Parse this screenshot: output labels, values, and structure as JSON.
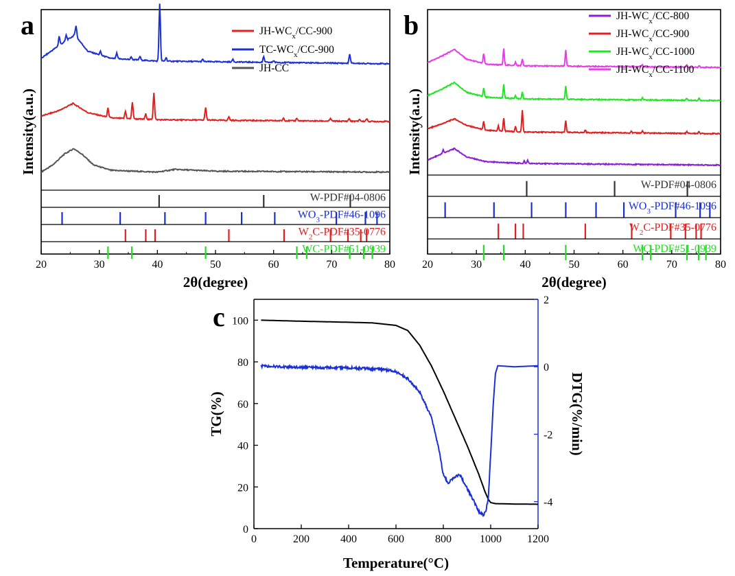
{
  "figure": {
    "panel_letters": [
      "a",
      "b",
      "c"
    ]
  },
  "chart_data": [
    {
      "panel": "a",
      "type": "line",
      "xlabel": "2θ(degree)",
      "ylabel": "Intensity(a.u.)",
      "xlim": [
        20,
        80
      ],
      "xticks": [
        20,
        30,
        40,
        50,
        60,
        70,
        80
      ],
      "series": [
        {
          "name": "JH-WC",
          "name_sub": "x",
          "name_tail": "/CC-900",
          "color": "#e02020",
          "offset": 0.38,
          "base": [
            [
              20,
              0.03
            ],
            [
              23,
              0.06
            ],
            [
              25.5,
              0.1
            ],
            [
              28,
              0.05
            ],
            [
              32,
              0.02
            ],
            [
              40,
              0.01
            ],
            [
              80,
              0.0
            ]
          ],
          "peaks": [
            [
              31.5,
              0.05
            ],
            [
              34.5,
              0.04
            ],
            [
              35.7,
              0.09
            ],
            [
              38.0,
              0.03
            ],
            [
              39.4,
              0.15
            ],
            [
              48.3,
              0.07
            ],
            [
              52.3,
              0.02
            ],
            [
              61.7,
              0.015
            ],
            [
              64.0,
              0.015
            ],
            [
              69.8,
              0.015
            ],
            [
              73.0,
              0.015
            ],
            [
              74.8,
              0.012
            ],
            [
              76.0,
              0.015
            ]
          ]
        },
        {
          "name": "TC-WC",
          "name_sub": "x",
          "name_tail": "/CC-900",
          "color": "#1b2fd6",
          "offset": 0.7,
          "base": [
            [
              20,
              0.03
            ],
            [
              23,
              0.1
            ],
            [
              25.8,
              0.16
            ],
            [
              28,
              0.07
            ],
            [
              32,
              0.03
            ],
            [
              40,
              0.015
            ],
            [
              80,
              0.0
            ]
          ],
          "peaks": [
            [
              23.1,
              0.05
            ],
            [
              24.3,
              0.03
            ],
            [
              26.0,
              0.06
            ],
            [
              30.2,
              0.02
            ],
            [
              33.0,
              0.03
            ],
            [
              35.5,
              0.015
            ],
            [
              37.0,
              0.02
            ],
            [
              40.4,
              0.32
            ],
            [
              41.5,
              0.02
            ],
            [
              47.8,
              0.012
            ],
            [
              53.0,
              0.015
            ],
            [
              58.3,
              0.03
            ],
            [
              60.0,
              0.01
            ],
            [
              73.1,
              0.05
            ]
          ]
        },
        {
          "name": "JH-CC",
          "name_sub": "",
          "name_tail": "",
          "color": "#555555",
          "offset": 0.1,
          "base": [
            [
              20,
              0.0
            ],
            [
              22,
              0.04
            ],
            [
              24,
              0.1
            ],
            [
              25.6,
              0.13
            ],
            [
              27,
              0.1
            ],
            [
              29,
              0.04
            ],
            [
              32,
              0.01
            ],
            [
              40,
              0.0
            ],
            [
              43,
              0.015
            ],
            [
              50,
              0.005
            ],
            [
              80,
              0.0
            ]
          ],
          "peaks": []
        }
      ],
      "reference_patterns": [
        {
          "label": "W-PDF#04-0806",
          "label_sub": "",
          "color": "#333333",
          "lines": [
            40.3,
            58.3,
            73.2
          ]
        },
        {
          "label": "WO",
          "label_sub": "3",
          "label_tail": "-PDF#46-1096",
          "color": "#1b2fd6",
          "lines": [
            23.6,
            33.6,
            41.3,
            48.3,
            54.5,
            60.2,
            70.8,
            75.8,
            77.8
          ]
        },
        {
          "label": "W",
          "label_sub": "2",
          "label_tail": "C-PDF#35-0776",
          "color": "#e02020",
          "lines": [
            34.5,
            38.0,
            39.6,
            52.3,
            61.8,
            69.8,
            72.8,
            75.0,
            76.0
          ]
        },
        {
          "label": "WC-PDF#51-0939",
          "label_sub": "",
          "color": "#22dd22",
          "lines": [
            31.5,
            35.6,
            48.3,
            64.0,
            65.7,
            73.1,
            75.5,
            77.0
          ]
        }
      ]
    },
    {
      "panel": "b",
      "type": "line",
      "xlabel": "2θ(degree)",
      "ylabel": "Intensity(a.u.)",
      "xlim": [
        20,
        80
      ],
      "xticks": [
        20,
        30,
        40,
        50,
        60,
        70,
        80
      ],
      "series": [
        {
          "name": "JH-WC",
          "name_sub": "x",
          "name_tail": "/CC-800",
          "color": "#8a1ed8",
          "offset": 0.06,
          "base": [
            [
              20,
              0.03
            ],
            [
              23,
              0.07
            ],
            [
              25.5,
              0.1
            ],
            [
              28,
              0.05
            ],
            [
              32,
              0.02
            ],
            [
              40,
              0.01
            ],
            [
              80,
              0.0
            ]
          ],
          "peaks": [
            [
              23.2,
              0.02
            ],
            [
              39.8,
              0.015
            ],
            [
              40.5,
              0.02
            ]
          ]
        },
        {
          "name": "JH-WC",
          "name_sub": "x",
          "name_tail": "/CC-900",
          "color": "#e02020",
          "offset": 0.25,
          "base": [
            [
              20,
              0.03
            ],
            [
              23,
              0.06
            ],
            [
              25.5,
              0.09
            ],
            [
              28,
              0.05
            ],
            [
              32,
              0.02
            ],
            [
              40,
              0.01
            ],
            [
              80,
              0.0
            ]
          ],
          "peaks": [
            [
              31.5,
              0.05
            ],
            [
              34.5,
              0.03
            ],
            [
              35.6,
              0.08
            ],
            [
              38.0,
              0.03
            ],
            [
              39.4,
              0.13
            ],
            [
              48.3,
              0.07
            ],
            [
              52.3,
              0.015
            ],
            [
              61.7,
              0.012
            ],
            [
              64.0,
              0.012
            ],
            [
              73.1,
              0.012
            ],
            [
              75.6,
              0.012
            ]
          ]
        },
        {
          "name": "JH-WC",
          "name_sub": "x",
          "name_tail": "/CC-1000",
          "color": "#22e622",
          "offset": 0.45,
          "base": [
            [
              20,
              0.03
            ],
            [
              23,
              0.07
            ],
            [
              25.5,
              0.11
            ],
            [
              28,
              0.05
            ],
            [
              32,
              0.02
            ],
            [
              40,
              0.01
            ],
            [
              80,
              0.0
            ]
          ],
          "peaks": [
            [
              31.5,
              0.05
            ],
            [
              35.6,
              0.08
            ],
            [
              38.0,
              0.02
            ],
            [
              39.4,
              0.04
            ],
            [
              48.3,
              0.08
            ],
            [
              64.0,
              0.012
            ],
            [
              73.1,
              0.012
            ],
            [
              75.6,
              0.012
            ]
          ]
        },
        {
          "name": "JH-WC",
          "name_sub": "x",
          "name_tail": "/CC-1100",
          "color": "#e83ce8",
          "offset": 0.65,
          "base": [
            [
              20,
              0.03
            ],
            [
              23,
              0.07
            ],
            [
              25.5,
              0.11
            ],
            [
              28,
              0.05
            ],
            [
              32,
              0.02
            ],
            [
              40,
              0.01
            ],
            [
              80,
              0.0
            ]
          ],
          "peaks": [
            [
              31.5,
              0.06
            ],
            [
              35.6,
              0.1
            ],
            [
              38.0,
              0.02
            ],
            [
              39.4,
              0.04
            ],
            [
              48.3,
              0.1
            ],
            [
              64.0,
              0.012
            ],
            [
              73.1,
              0.015
            ],
            [
              75.6,
              0.012
            ]
          ]
        }
      ],
      "reference_patterns": [
        {
          "label": "W-PDF#04-0806",
          "label_sub": "",
          "color": "#333333",
          "lines": [
            40.3,
            58.3,
            73.2
          ]
        },
        {
          "label": "WO",
          "label_sub": "3",
          "label_tail": "-PDF#46-1096",
          "color": "#1b2fd6",
          "lines": [
            23.6,
            33.6,
            41.3,
            48.3,
            54.5,
            60.2,
            70.8,
            75.8,
            77.8
          ]
        },
        {
          "label": "W",
          "label_sub": "2",
          "label_tail": "C-PDF#35-0776",
          "color": "#e02020",
          "lines": [
            34.5,
            38.0,
            39.6,
            52.3,
            61.8,
            69.8,
            72.8,
            75.0,
            76.0
          ]
        },
        {
          "label": "WC-PDF#51-0939",
          "label_sub": "",
          "color": "#22dd22",
          "lines": [
            31.5,
            35.6,
            48.3,
            64.0,
            65.7,
            73.1,
            75.5,
            77.0
          ]
        }
      ]
    },
    {
      "panel": "c",
      "type": "line",
      "xlabel": "Temperature(°C)",
      "ylabel": "TG(%)",
      "y2label": "DTG(%/min)",
      "xlim": [
        0,
        1200
      ],
      "ylim": [
        0,
        110
      ],
      "y2lim": [
        -4.8,
        2
      ],
      "xticks": [
        0,
        200,
        400,
        600,
        800,
        1000,
        1200
      ],
      "yticks": [
        0,
        20,
        40,
        60,
        80,
        100
      ],
      "y2ticks": [
        -4,
        -2,
        0,
        2
      ],
      "series": [
        {
          "name": "TG",
          "axis": "left",
          "color": "#000000",
          "points": [
            [
              30,
              100
            ],
            [
              200,
              99.5
            ],
            [
              400,
              99.0
            ],
            [
              500,
              98.7
            ],
            [
              600,
              97.5
            ],
            [
              650,
              95
            ],
            [
              700,
              88
            ],
            [
              750,
              78
            ],
            [
              800,
              66
            ],
            [
              850,
              53
            ],
            [
              900,
              40
            ],
            [
              950,
              26
            ],
            [
              975,
              18
            ],
            [
              990,
              14
            ],
            [
              1000,
              12.5
            ],
            [
              1020,
              12
            ],
            [
              1100,
              11.8
            ],
            [
              1200,
              11.7
            ]
          ]
        },
        {
          "name": "DTG",
          "axis": "right",
          "color": "#1b2fd6",
          "points": [
            [
              30,
              0.02
            ],
            [
              200,
              -0.02
            ],
            [
              400,
              -0.03
            ],
            [
              550,
              -0.08
            ],
            [
              600,
              -0.15
            ],
            [
              650,
              -0.35
            ],
            [
              700,
              -0.75
            ],
            [
              750,
              -1.5
            ],
            [
              780,
              -2.4
            ],
            [
              800,
              -3.2
            ],
            [
              820,
              -3.45
            ],
            [
              850,
              -3.25
            ],
            [
              870,
              -3.2
            ],
            [
              900,
              -3.6
            ],
            [
              930,
              -4.0
            ],
            [
              950,
              -4.3
            ],
            [
              970,
              -4.4
            ],
            [
              980,
              -4.25
            ],
            [
              990,
              -3.9
            ],
            [
              1000,
              -2.6
            ],
            [
              1010,
              -1.2
            ],
            [
              1020,
              -0.2
            ],
            [
              1030,
              0.03
            ],
            [
              1100,
              0.0
            ],
            [
              1200,
              0.03
            ]
          ]
        }
      ]
    }
  ]
}
